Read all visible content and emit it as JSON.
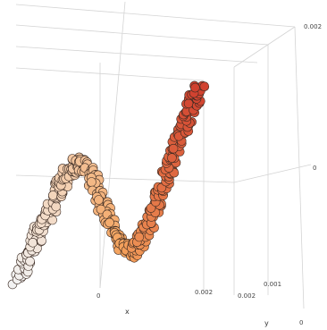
{
  "chart_data": {
    "type": "scatter",
    "projection": "3d",
    "title": "",
    "xlabel": "x",
    "ylabel": "y",
    "zlabel": "",
    "x_ticks": [
      "0",
      "0.002"
    ],
    "y_ticks": [
      "0.002",
      "0.001",
      "0"
    ],
    "z_ticks": [
      "0",
      "0.002"
    ],
    "xlim": [
      -0.0012,
      0.0033
    ],
    "ylim": [
      0,
      0.002
    ],
    "zlim": [
      -0.0012,
      0.0028
    ],
    "grid": true,
    "legend": "none",
    "color_scale": [
      "#f2f2f2",
      "#f4a25c",
      "#c0141a"
    ],
    "color_by": "x",
    "marker": "circle",
    "series": [
      {
        "points": [
          {
            "x": -0.0012,
            "z": -0.0011
          },
          {
            "x": -0.001,
            "z": -0.0007
          },
          {
            "x": -0.0008,
            "z": -0.0003
          },
          {
            "x": -0.0006,
            "z": 0.0001
          },
          {
            "x": -0.0004,
            "z": 0.0005
          },
          {
            "x": -0.0002,
            "z": 0.0008
          },
          {
            "x": 0.0,
            "z": 0.0011
          },
          {
            "x": 0.0002,
            "z": 0.001
          },
          {
            "x": 0.0004,
            "z": 0.0007
          },
          {
            "x": 0.0006,
            "z": 0.0002
          },
          {
            "x": 0.0008,
            "z": -0.0002
          },
          {
            "x": 0.001,
            "z": -0.0005
          },
          {
            "x": 0.0012,
            "z": -0.0006
          },
          {
            "x": 0.0014,
            "z": -0.0003
          },
          {
            "x": 0.0016,
            "z": 0.0001
          },
          {
            "x": 0.0018,
            "z": 0.0006
          },
          {
            "x": 0.002,
            "z": 0.0011
          },
          {
            "x": 0.0022,
            "z": 0.0016
          },
          {
            "x": 0.0024,
            "z": 0.0021
          },
          {
            "x": 0.0026,
            "z": 0.0025
          }
        ]
      }
    ]
  }
}
